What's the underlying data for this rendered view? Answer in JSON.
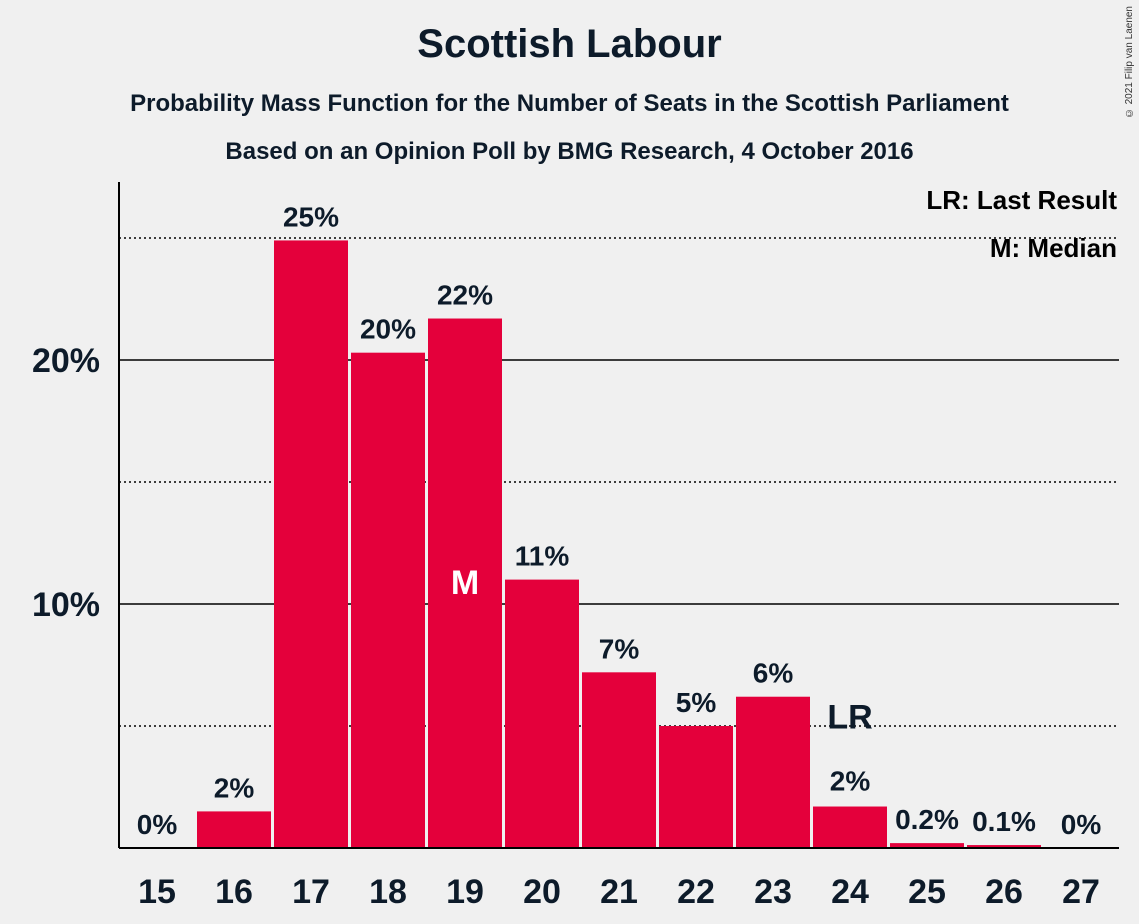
{
  "title": "Scottish Labour",
  "subtitle": "Probability Mass Function for the Number of Seats in the Scottish Parliament",
  "subtitle2": "Based on an Opinion Poll by BMG Research, 4 October 2016",
  "copyright": "© 2021 Filip van Laenen",
  "legend": {
    "last_result": "LR: Last Result",
    "median": "M: Median"
  },
  "colors": {
    "bar": "#e4003b",
    "background": "#f0f0f0",
    "text": "#0d1b2a"
  },
  "chart_data": {
    "type": "bar",
    "title": "Scottish Labour",
    "xlabel": "",
    "ylabel": "",
    "categories": [
      "15",
      "16",
      "17",
      "18",
      "19",
      "20",
      "21",
      "22",
      "23",
      "24",
      "25",
      "26",
      "27"
    ],
    "values": [
      0,
      1.5,
      24.9,
      20.3,
      21.7,
      11.0,
      7.2,
      5.0,
      6.2,
      1.7,
      0.2,
      0.12,
      0
    ],
    "labels": [
      "0%",
      "2%",
      "25%",
      "20%",
      "22%",
      "11%",
      "7%",
      "5%",
      "6%",
      "2%",
      "0.2%",
      "0.1%",
      "0%"
    ],
    "ylim": [
      0,
      27
    ],
    "yticks": [
      {
        "value": 10,
        "label": "10%"
      },
      {
        "value": 20,
        "label": "20%"
      }
    ],
    "dotted_gridlines": [
      5,
      15,
      25
    ],
    "solid_gridlines": [
      10,
      20
    ],
    "median_category": "19",
    "median_label": "M",
    "last_result_category": "24",
    "last_result_label": "LR",
    "legend_position": "top-right"
  }
}
